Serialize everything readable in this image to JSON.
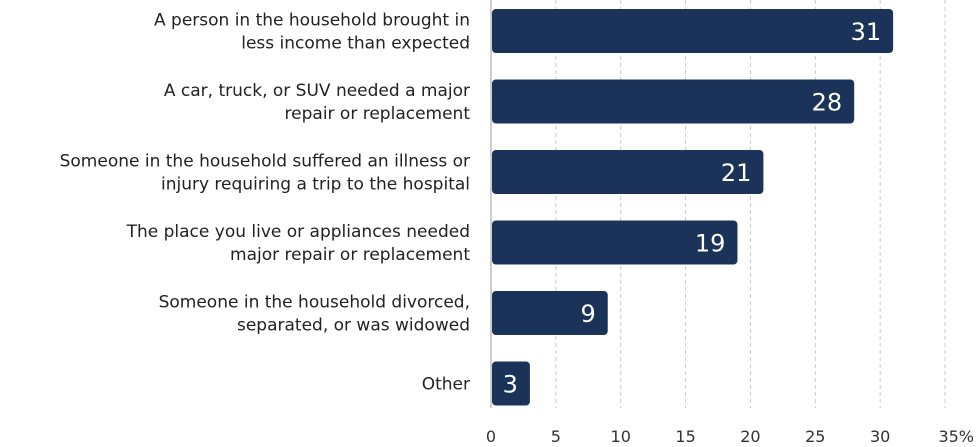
{
  "chart_data": {
    "type": "bar",
    "orientation": "horizontal",
    "categories": [
      [
        "A person in the household brought in",
        "less income than expected"
      ],
      [
        "A car, truck, or SUV needed a major",
        "repair or replacement"
      ],
      [
        "Someone in the household suffered an illness or",
        "injury requiring a trip to the hospital"
      ],
      [
        "The place you live or appliances needed",
        "major repair or replacement"
      ],
      [
        "Someone in the household divorced,",
        "separated, or was widowed"
      ],
      [
        "Other"
      ]
    ],
    "values": [
      31,
      28,
      21,
      19,
      9,
      3
    ],
    "value_labels": [
      "31",
      "28",
      "21",
      "19",
      "9",
      "3"
    ],
    "xlim": [
      0,
      35
    ],
    "x_ticks": [
      "0",
      "5",
      "10",
      "15",
      "20",
      "25",
      "30",
      "35%"
    ],
    "grid": "vertical dashed",
    "bar_color": "#1b3358"
  }
}
